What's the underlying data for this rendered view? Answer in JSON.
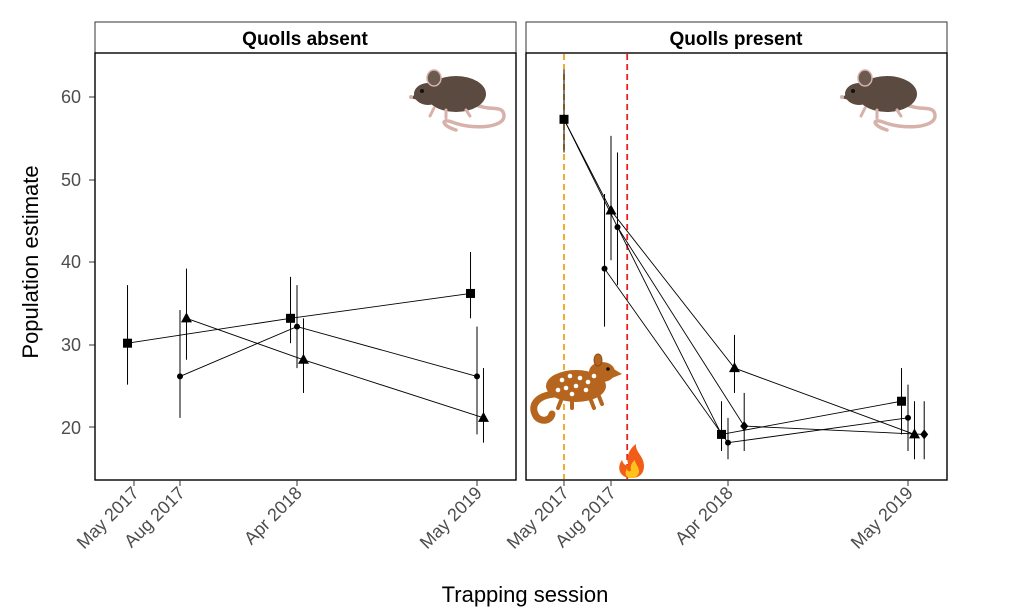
{
  "chart_data": {
    "type": "scatter",
    "ylabel": "Population estimate",
    "xlabel": "Trapping session",
    "ylim": [
      13.5,
      65
    ],
    "yticks": [
      20,
      30,
      40,
      50,
      60
    ],
    "xticks": [
      "May 2017",
      "Aug 2017",
      "Apr 2018",
      "May 2019"
    ],
    "grid": false,
    "panels": [
      {
        "name": "Quolls absent",
        "markers": [
          {
            "label": "sq-0",
            "shape": "square",
            "x": "May 2017",
            "offset": -0.18,
            "y": 30,
            "lo": 25,
            "hi": 37
          },
          {
            "label": "sq-1",
            "shape": "square",
            "x": "Apr 2018",
            "offset": -0.18,
            "y": 33,
            "lo": 30,
            "hi": 38
          },
          {
            "label": "sq-2",
            "shape": "square",
            "x": "May 2019",
            "offset": -0.18,
            "y": 36,
            "lo": 33,
            "hi": 41
          },
          {
            "label": "ci-0",
            "shape": "circle",
            "x": "Aug 2017",
            "offset": 0.0,
            "y": 26,
            "lo": 21,
            "hi": 34
          },
          {
            "label": "ci-1",
            "shape": "circle",
            "x": "Apr 2018",
            "offset": 0.0,
            "y": 32,
            "lo": 27,
            "hi": 37
          },
          {
            "label": "ci-2",
            "shape": "circle",
            "x": "May 2019",
            "offset": 0.0,
            "y": 26,
            "lo": 19,
            "hi": 32
          },
          {
            "label": "tr-0",
            "shape": "triangle",
            "x": "Aug 2017",
            "offset": 0.18,
            "y": 33,
            "lo": 28,
            "hi": 39
          },
          {
            "label": "tr-1",
            "shape": "triangle",
            "x": "Apr 2018",
            "offset": 0.18,
            "y": 28,
            "lo": 24,
            "hi": 33
          },
          {
            "label": "tr-2",
            "shape": "triangle",
            "x": "May 2019",
            "offset": 0.18,
            "y": 21,
            "lo": 18,
            "hi": 27
          }
        ],
        "lines": [
          [
            "sq-0",
            "sq-1",
            "sq-2"
          ],
          [
            "ci-0",
            "ci-1",
            "ci-2"
          ],
          [
            "tr-0",
            "tr-1",
            "tr-2"
          ]
        ],
        "vlines": []
      },
      {
        "name": "Quolls present",
        "markers": [
          {
            "label": "sq-0",
            "shape": "square",
            "x": "May 2017",
            "offset": 0.0,
            "y": 57,
            "lo": 53,
            "hi": 63
          },
          {
            "label": "sq-1",
            "shape": "square",
            "x": "Apr 2018",
            "offset": -0.18,
            "y": 19,
            "lo": 17,
            "hi": 23
          },
          {
            "label": "sq-2",
            "shape": "square",
            "x": "May 2019",
            "offset": -0.18,
            "y": 23,
            "lo": 19,
            "hi": 27
          },
          {
            "label": "ci-0",
            "shape": "circle",
            "x": "Aug 2017",
            "offset": -0.18,
            "y": 39,
            "lo": 32,
            "hi": 48
          },
          {
            "label": "ci-1",
            "shape": "circle",
            "x": "Aug 2017",
            "offset": 0.18,
            "y": 44,
            "lo": 37,
            "hi": 53
          },
          {
            "label": "ci-2",
            "shape": "circle",
            "x": "Apr 2018",
            "offset": 0.0,
            "y": 18,
            "lo": 16,
            "hi": 21
          },
          {
            "label": "ci-3",
            "shape": "circle",
            "x": "May 2019",
            "offset": 0.0,
            "y": 21,
            "lo": 17,
            "hi": 25
          },
          {
            "label": "tr-0",
            "shape": "triangle",
            "x": "Aug 2017",
            "offset": 0.0,
            "y": 46,
            "lo": 40,
            "hi": 55
          },
          {
            "label": "tr-1",
            "shape": "triangle",
            "x": "Apr 2018",
            "offset": 0.18,
            "y": 27,
            "lo": 24,
            "hi": 31
          },
          {
            "label": "tr-2",
            "shape": "triangle",
            "x": "May 2019",
            "offset": 0.18,
            "y": 19,
            "lo": 16,
            "hi": 23
          },
          {
            "label": "di-0",
            "shape": "diamond",
            "x": "Apr 2018",
            "offset": 0.45,
            "y": 20,
            "lo": 17,
            "hi": 24
          },
          {
            "label": "di-1",
            "shape": "diamond",
            "x": "May 2019",
            "offset": 0.45,
            "y": 19,
            "lo": 16,
            "hi": 23
          }
        ],
        "lines": [
          [
            "sq-0",
            "tr-0",
            "tr-1",
            "tr-2"
          ],
          [
            "sq-0",
            "ci-1",
            "sq-1",
            "sq-2"
          ],
          [
            "ci-0",
            "ci-2",
            "ci-3"
          ],
          [
            "ci-1",
            "di-0",
            "di-1"
          ]
        ],
        "vlines": [
          {
            "x": "May 2017",
            "offset": 0.0,
            "color": "#f0a31e"
          },
          {
            "x": "Aug 2017",
            "offset": 0.45,
            "color": "#e8201f"
          }
        ]
      }
    ]
  },
  "icons": [
    "rat-icon",
    "quoll-icon",
    "fire-icon"
  ],
  "colors": {
    "rat_body": "#5a4a40",
    "rat_tail": "#d7b2aa",
    "quoll_body": "#b5651d",
    "marker": "#000000"
  }
}
